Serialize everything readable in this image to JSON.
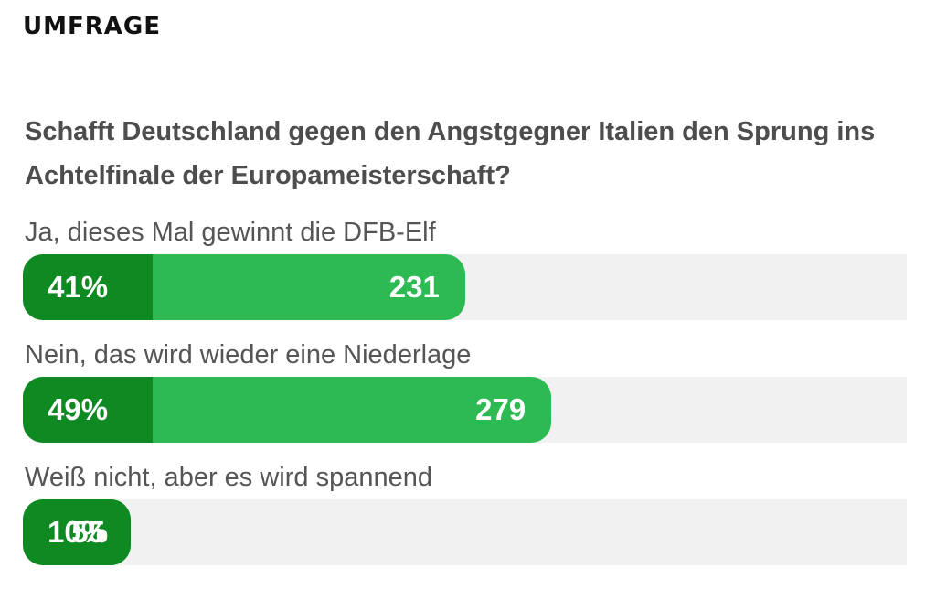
{
  "poll": {
    "section_title": "UMFRAGE",
    "question": "Schafft Deutschland gegen den Angstgegner Italien den Sprung ins Achtelfinale der Europameisterschaft?",
    "options": [
      {
        "label": "Ja, dieses Mal gewinnt die DFB-Elf",
        "percent_label": "41%",
        "percent": 41,
        "votes": "231",
        "votes_value": 231
      },
      {
        "label": "Nein, das wird wieder eine Niederlage",
        "percent_label": "49%",
        "percent": 49,
        "votes": "279",
        "votes_value": 279
      },
      {
        "label": "Weiß nicht, aber es wird spannend",
        "percent_label": "10%",
        "percent": 10,
        "votes": "55",
        "votes_value": 55
      }
    ],
    "colors": {
      "percent_box": "#0f8a23",
      "bar_fill": "#2dba52",
      "track": "#f1f1f1"
    }
  }
}
